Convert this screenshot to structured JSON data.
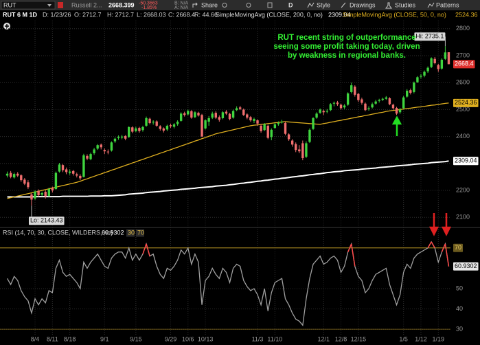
{
  "toolbar": {
    "symbol": "RUT",
    "description": "Russell 2...",
    "last": "2668.399",
    "change": "-50.3663",
    "change_pct": "-1.85%",
    "bid": "B: N/A",
    "ask": "A: N/A",
    "share": "Share",
    "period": "D",
    "style": "Style",
    "drawings": "Drawings",
    "studies": "Studies",
    "patterns": "Patterns"
  },
  "info_bar": {
    "title": "RUT 6 M 1D",
    "date": "D: 1/23/26",
    "open": "O: 2712.7",
    "high": "H: 2712.7",
    "low": "L: 2668.03",
    "close": "C: 2668.4",
    "range": "R: 44.66",
    "sma200_label": "SimpleMovingAvg (CLOSE, 200, 0, no)",
    "sma50_label": "SimpleMovingAvg (CLOSE, 50, 0, no)"
  },
  "chart_data": [
    {
      "type": "candlestick",
      "categories": [
        null,
        null,
        null,
        null,
        null,
        null,
        null,
        null,
        "8/4",
        null,
        null,
        null,
        null,
        "8/11",
        null,
        null,
        null,
        null,
        "8/18",
        null,
        null,
        null,
        null,
        null,
        null,
        null,
        null,
        null,
        "9/1",
        null,
        null,
        null,
        null,
        null,
        null,
        null,
        null,
        "9/15",
        null,
        null,
        null,
        null,
        null,
        null,
        null,
        null,
        null,
        "9/29",
        null,
        null,
        null,
        null,
        "10/6",
        null,
        null,
        null,
        null,
        "10/13",
        null,
        null,
        null,
        null,
        null,
        null,
        null,
        null,
        null,
        null,
        null,
        null,
        null,
        null,
        "11/3",
        null,
        null,
        null,
        null,
        "11/10",
        null,
        null,
        null,
        null,
        null,
        null,
        null,
        null,
        null,
        null,
        null,
        null,
        null,
        "12/1",
        null,
        null,
        null,
        null,
        "12/8",
        null,
        null,
        null,
        null,
        "12/15",
        null,
        null,
        null,
        null,
        null,
        null,
        null,
        null,
        null,
        null,
        null,
        null,
        "1/5",
        null,
        null,
        null,
        null,
        "1/12",
        null,
        null,
        null,
        null,
        "1/19",
        null,
        null,
        null
      ],
      "open": [
        2255,
        2265,
        2248,
        2262,
        2256,
        2240,
        2230,
        2185,
        2170,
        2198,
        2184,
        2195,
        2180,
        2208,
        2205,
        2270,
        2294,
        2278,
        2265,
        2272,
        2260,
        2254,
        2250,
        2328,
        2316,
        2338,
        2355,
        2370,
        2350,
        2344,
        2348,
        2382,
        2394,
        2396,
        2402,
        2398,
        2434,
        2420,
        2432,
        2424,
        2440,
        2466,
        2452,
        2456,
        2438,
        2430,
        2426,
        2442,
        2436,
        2446,
        2458,
        2486,
        2482,
        2494,
        2472,
        2488,
        2480,
        2430,
        2455,
        2470,
        2488,
        2472,
        2468,
        2492,
        2484,
        2470,
        2498,
        2508,
        2500,
        2482,
        2472,
        2458,
        2460,
        2440,
        2424,
        2440,
        2398,
        2432,
        2446,
        2452,
        2450,
        2408,
        2385,
        2372,
        2352,
        2375,
        2325,
        2380,
        2428,
        2470,
        2488,
        2495,
        2492,
        2498,
        2522,
        2526,
        2518,
        2508,
        2518,
        2565,
        2585,
        2558,
        2538,
        2522,
        2502,
        2508,
        2522,
        2532,
        2536,
        2540,
        2542,
        2518,
        2506,
        2490,
        2505,
        2548,
        2572,
        2565,
        2602,
        2622,
        2626,
        2642,
        2658,
        2688,
        2665,
        2652,
        2688,
        2712.7
      ],
      "high": [
        2270,
        2272,
        2266,
        2268,
        2260,
        2246,
        2238,
        2190,
        2200,
        2204,
        2196,
        2200,
        2210,
        2214,
        2270,
        2302,
        2298,
        2285,
        2278,
        2276,
        2266,
        2260,
        2336,
        2334,
        2340,
        2358,
        2372,
        2374,
        2356,
        2352,
        2382,
        2396,
        2404,
        2406,
        2405,
        2438,
        2438,
        2436,
        2436,
        2440,
        2474,
        2470,
        2460,
        2460,
        2442,
        2434,
        2444,
        2448,
        2450,
        2460,
        2490,
        2492,
        2500,
        2498,
        2494,
        2492,
        2484,
        2464,
        2476,
        2492,
        2494,
        2478,
        2494,
        2498,
        2488,
        2500,
        2512,
        2514,
        2504,
        2486,
        2476,
        2470,
        2464,
        2446,
        2450,
        2444,
        2430,
        2450,
        2456,
        2462,
        2454,
        2412,
        2390,
        2378,
        2368,
        2385,
        2382,
        2430,
        2472,
        2490,
        2504,
        2500,
        2502,
        2524,
        2530,
        2532,
        2522,
        2520,
        2564,
        2600,
        2590,
        2562,
        2544,
        2526,
        2512,
        2526,
        2536,
        2540,
        2544,
        2550,
        2546,
        2522,
        2510,
        2506,
        2550,
        2576,
        2578,
        2604,
        2624,
        2632,
        2645,
        2660,
        2694,
        2695,
        2670,
        2690,
        2735.1,
        2712.7
      ],
      "low": [
        2248,
        2245,
        2244,
        2250,
        2232,
        2220,
        2205,
        2143.43,
        2165,
        2176,
        2178,
        2170,
        2175,
        2192,
        2203,
        2266,
        2268,
        2260,
        2258,
        2255,
        2248,
        2238,
        2248,
        2312,
        2312,
        2332,
        2350,
        2352,
        2335,
        2334,
        2344,
        2376,
        2388,
        2390,
        2386,
        2395,
        2412,
        2416,
        2414,
        2418,
        2436,
        2445,
        2444,
        2436,
        2422,
        2415,
        2420,
        2432,
        2430,
        2440,
        2455,
        2474,
        2478,
        2466,
        2468,
        2474,
        2398,
        2426,
        2440,
        2465,
        2465,
        2455,
        2464,
        2480,
        2460,
        2466,
        2494,
        2498,
        2476,
        2464,
        2455,
        2450,
        2440,
        2414,
        2420,
        2390,
        2386,
        2428,
        2440,
        2448,
        2405,
        2384,
        2362,
        2342,
        2338,
        2312,
        2320,
        2376,
        2424,
        2466,
        2484,
        2480,
        2486,
        2494,
        2512,
        2514,
        2500,
        2502,
        2514,
        2560,
        2548,
        2528,
        2518,
        2494,
        2496,
        2504,
        2518,
        2526,
        2532,
        2536,
        2516,
        2500,
        2480,
        2484,
        2502,
        2544,
        2556,
        2560,
        2598,
        2615,
        2620,
        2636,
        2654,
        2668,
        2640,
        2648,
        2684,
        2668.03
      ],
      "close": [
        2262,
        2250,
        2261,
        2255,
        2238,
        2225,
        2212,
        2166,
        2196,
        2182,
        2190,
        2178,
        2205,
        2200,
        2265,
        2296,
        2275,
        2268,
        2270,
        2262,
        2255,
        2245,
        2330,
        2318,
        2335,
        2352,
        2368,
        2360,
        2345,
        2342,
        2378,
        2392,
        2398,
        2400,
        2392,
        2435,
        2418,
        2430,
        2420,
        2435,
        2468,
        2450,
        2455,
        2440,
        2428,
        2422,
        2440,
        2438,
        2445,
        2455,
        2485,
        2480,
        2495,
        2470,
        2490,
        2478,
        2400,
        2460,
        2468,
        2485,
        2470,
        2462,
        2490,
        2485,
        2465,
        2495,
        2505,
        2502,
        2480,
        2470,
        2460,
        2465,
        2448,
        2420,
        2445,
        2395,
        2425,
        2445,
        2450,
        2455,
        2410,
        2390,
        2370,
        2350,
        2345,
        2320,
        2375,
        2425,
        2468,
        2485,
        2500,
        2490,
        2495,
        2520,
        2525,
        2520,
        2505,
        2515,
        2560,
        2590,
        2555,
        2535,
        2525,
        2498,
        2505,
        2520,
        2530,
        2535,
        2540,
        2545,
        2520,
        2505,
        2485,
        2500,
        2545,
        2570,
        2562,
        2600,
        2620,
        2625,
        2640,
        2655,
        2690,
        2672,
        2650,
        2685,
        2712,
        2668.4
      ],
      "up_color": "#3fd43f",
      "down_color": "#f06e6e",
      "last_color": "#e0302d",
      "series": [
        {
          "color": "#ffffff",
          "values": [
            2176,
            2176,
            2176,
            2176,
            2176,
            2176,
            2176,
            2176,
            2177,
            2177,
            2177,
            2177,
            2177,
            2177,
            2177,
            2177,
            2178,
            2178,
            2178,
            2178,
            2178,
            2178,
            2178,
            2178,
            2179,
            2179,
            2179,
            2179,
            2180,
            2180,
            2180,
            2181,
            2182,
            2183,
            2184,
            2186,
            2187,
            2188,
            2189,
            2190,
            2192,
            2193,
            2194,
            2195,
            2196,
            2198,
            2199,
            2200,
            2201,
            2202,
            2204,
            2205,
            2206,
            2207,
            2208,
            2210,
            2211,
            2212,
            2213,
            2214,
            2216,
            2217,
            2218,
            2219,
            2221,
            2222,
            2224,
            2226,
            2227,
            2229,
            2230,
            2232,
            2234,
            2235,
            2237,
            2238,
            2240,
            2242,
            2243,
            2245,
            2246,
            2248,
            2250,
            2251,
            2253,
            2254,
            2256,
            2258,
            2259,
            2261,
            2262,
            2264,
            2266,
            2267,
            2269,
            2270,
            2271,
            2273,
            2274,
            2275,
            2276,
            2277,
            2279,
            2280,
            2281,
            2282,
            2283,
            2285,
            2286,
            2287,
            2288,
            2289,
            2291,
            2292,
            2293,
            2294,
            2295,
            2297,
            2298,
            2299,
            2300,
            2301,
            2303,
            2304,
            2305,
            2306,
            2307,
            2309.04
          ]
        },
        {
          "color": "#e0b020",
          "values": [
            2170,
            2173,
            2176,
            2179,
            2182,
            2185,
            2188,
            2191,
            2194,
            2197,
            2200,
            2203,
            2206,
            2209,
            2212,
            2215,
            2218,
            2221,
            2224,
            2227,
            2230,
            2234,
            2239,
            2243,
            2248,
            2252,
            2257,
            2261,
            2266,
            2270,
            2275,
            2279,
            2284,
            2288,
            2293,
            2297,
            2302,
            2306,
            2311,
            2315,
            2320,
            2324,
            2329,
            2333,
            2338,
            2342,
            2347,
            2351,
            2356,
            2360,
            2365,
            2369,
            2374,
            2378,
            2383,
            2387,
            2392,
            2396,
            2401,
            2405,
            2410,
            2413,
            2416,
            2419,
            2422,
            2425,
            2428,
            2431,
            2434,
            2437,
            2440,
            2442,
            2443,
            2445,
            2446,
            2448,
            2449,
            2451,
            2452,
            2454,
            2455,
            2454,
            2453,
            2452,
            2451,
            2450,
            2449,
            2448,
            2447,
            2446,
            2445,
            2448,
            2450,
            2453,
            2455,
            2458,
            2460,
            2463,
            2465,
            2468,
            2470,
            2473,
            2475,
            2478,
            2480,
            2483,
            2485,
            2488,
            2490,
            2493,
            2495,
            2497,
            2498,
            2500,
            2502,
            2504,
            2505,
            2507,
            2509,
            2510,
            2512,
            2514,
            2516,
            2517,
            2519,
            2521,
            2523,
            2524.36
          ]
        }
      ],
      "ylim": [
        2065,
        2830
      ],
      "yticks": [
        2100,
        2200,
        2300,
        2400,
        2500,
        2600,
        2700,
        2800
      ],
      "grid": true,
      "annotation": [
        "RUT recent string of outperformance",
        "seeing some profit taking today, driven",
        "by weakness in regional banks."
      ],
      "annotation_color": "#33ee33",
      "high_label": "Hi: 2735.1",
      "low_label": "Lo: 2143.43"
    },
    {
      "type": "line",
      "title": "RSI (14, 70, 30, CLOSE, WILDERS, no)",
      "values": [
        55,
        52,
        56,
        54,
        49,
        46,
        44,
        38,
        45,
        42,
        45,
        43,
        49,
        48,
        60,
        64,
        58,
        56,
        57,
        55,
        53,
        50,
        63,
        60,
        63,
        65,
        67,
        64,
        61,
        60,
        65,
        67,
        68,
        68,
        65,
        70,
        64,
        67,
        64,
        67,
        72,
        66,
        67,
        61,
        57,
        55,
        60,
        59,
        61,
        64,
        69,
        67,
        70,
        62,
        67,
        63,
        42,
        54,
        56,
        60,
        57,
        55,
        60,
        58,
        53,
        60,
        62,
        61,
        54,
        51,
        49,
        50,
        47,
        42,
        50,
        39,
        48,
        53,
        54,
        55,
        45,
        42,
        38,
        35,
        34,
        32,
        45,
        55,
        62,
        64,
        66,
        62,
        63,
        65,
        66,
        64,
        58,
        61,
        68,
        72,
        61,
        56,
        54,
        48,
        50,
        54,
        57,
        58,
        59,
        60,
        52,
        47,
        42,
        47,
        58,
        62,
        60,
        65,
        67,
        68,
        69,
        70,
        73,
        70,
        63,
        68,
        72,
        60.9302
      ],
      "color": "#a0a0a0",
      "over_color": "#ff4a4a",
      "overbought": 70,
      "oversold": 30,
      "level_color": "#c9a227",
      "ylim": [
        27,
        75
      ],
      "yticks": [
        30,
        40,
        50
      ],
      "grid": true
    }
  ]
}
